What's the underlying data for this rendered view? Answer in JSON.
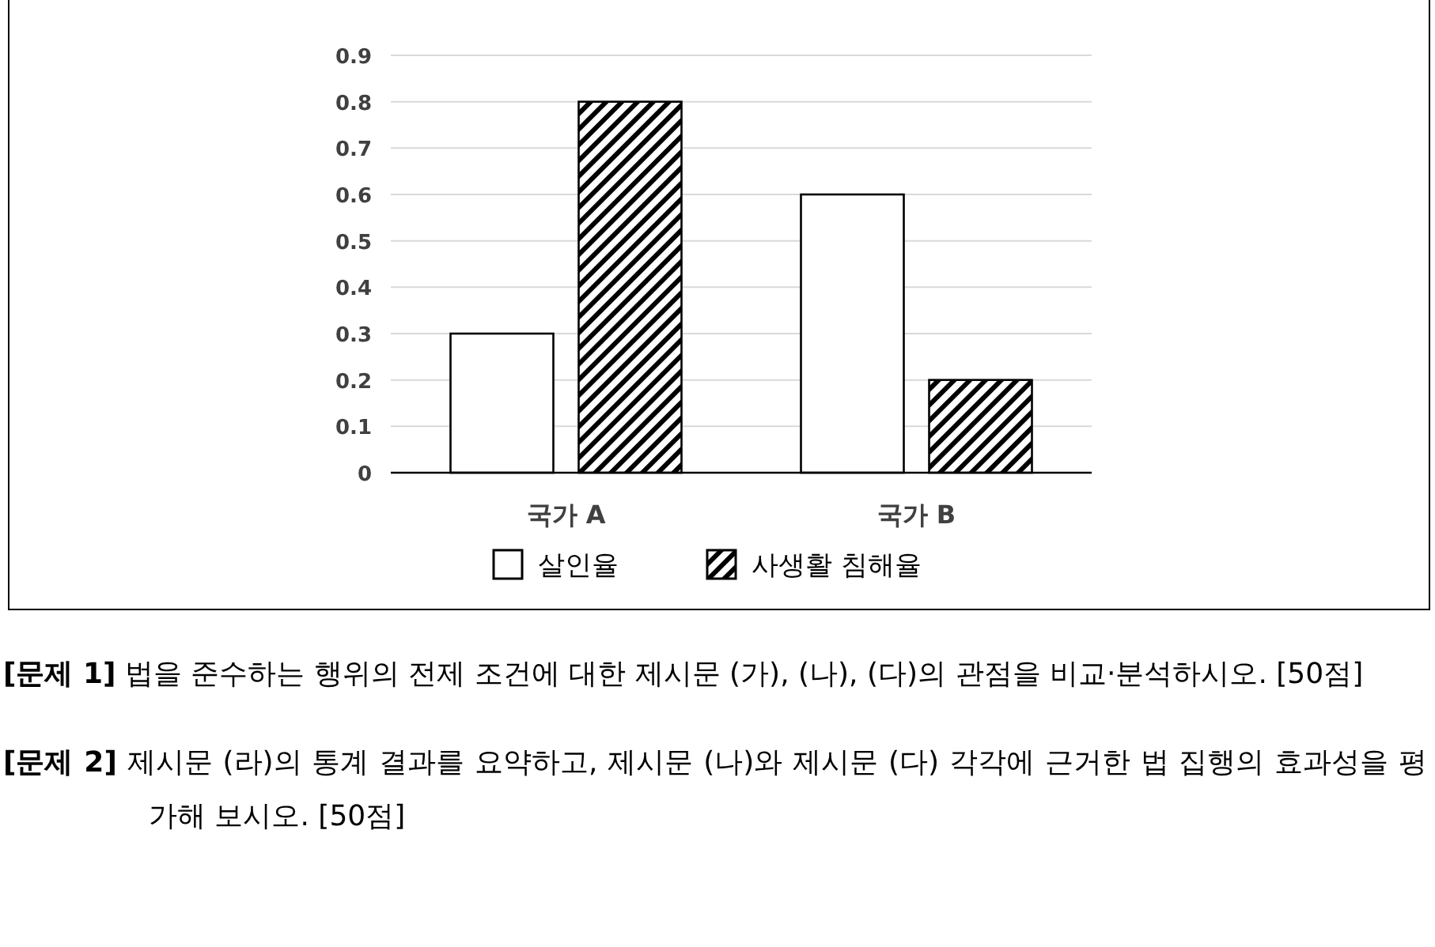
{
  "chart_data": {
    "type": "bar",
    "categories": [
      "국가 A",
      "국가 B"
    ],
    "series": [
      {
        "name": "살인율",
        "color": "#ffffff",
        "values": [
          0.3,
          0.6
        ]
      },
      {
        "name": "사생활 침해율",
        "color": "#000000",
        "values": [
          0.8,
          0.2
        ]
      }
    ],
    "ylim": [
      0,
      0.9
    ],
    "yticks": [
      0,
      0.1,
      0.2,
      0.3,
      0.4,
      0.5,
      0.6,
      0.7,
      0.8,
      0.9
    ],
    "grid": "y",
    "legend": "bottom",
    "annotations": [
      "[문제 1] 법을 준수하는 행위의 전제 조건에 대한 제시문 (가), (나), (다)의 관점을 비교·분석하시오. [50점]",
      "[문제 2] 제시문 (라)의 통계 결과를 요약하고, 제시문 (나)와 제시문 (다) 각각에 근거한 법 집행의 효과성을 평가해 보시오. [50점]"
    ]
  }
}
